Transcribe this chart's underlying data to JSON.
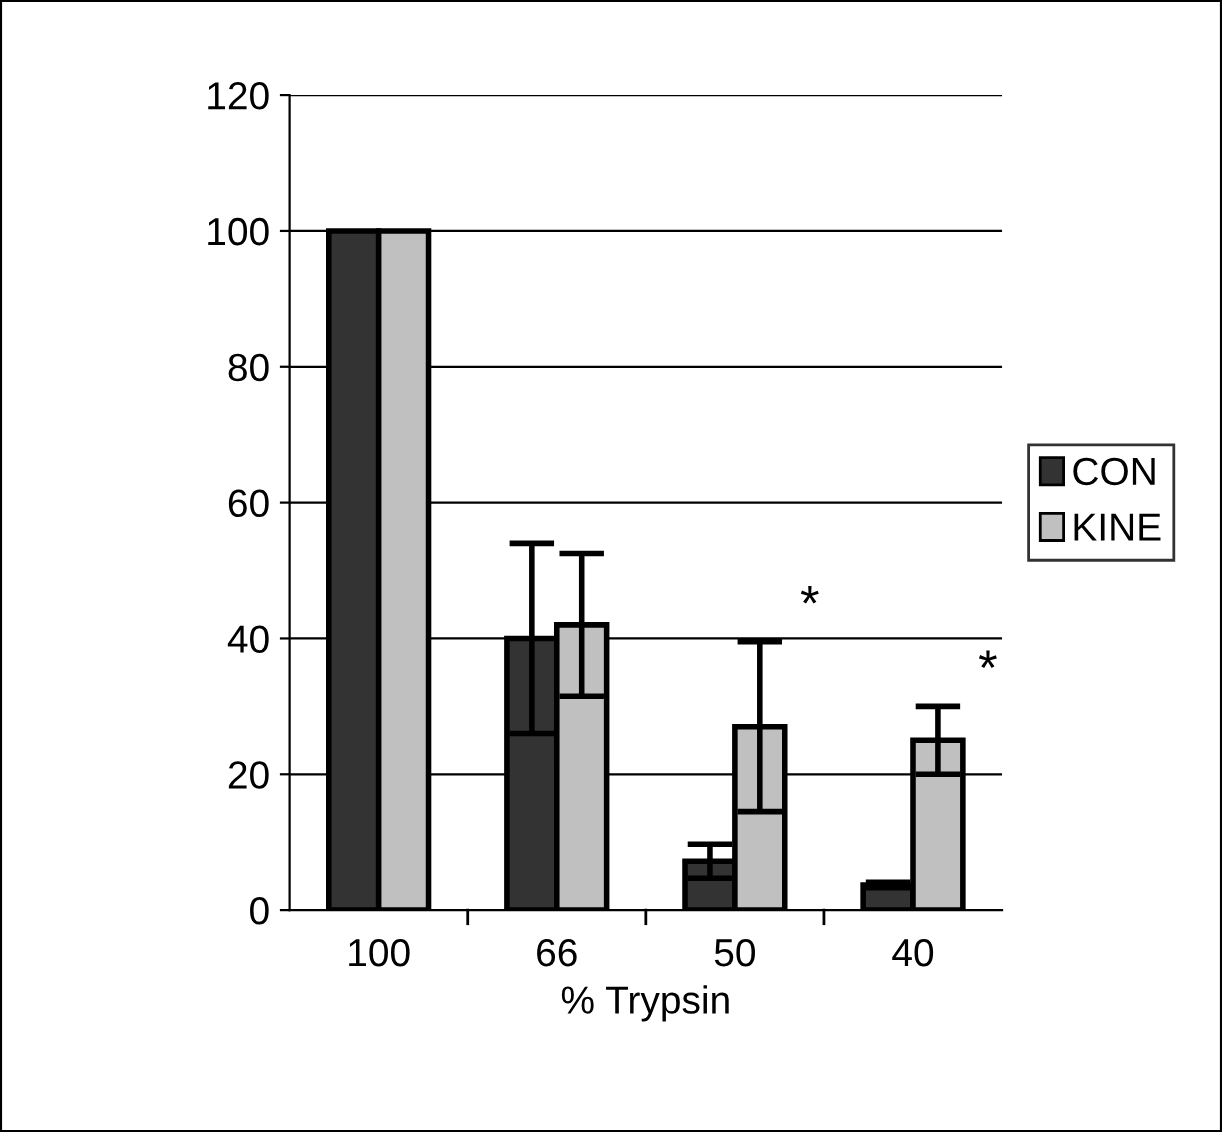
{
  "chart_data": {
    "type": "bar",
    "xlabel": "% Trypsin",
    "categories": [
      "100",
      "66",
      "50",
      "40"
    ],
    "series": [
      {
        "name": "CON",
        "color": "#333333",
        "values": [
          100,
          40,
          7.2,
          3.7
        ],
        "errors": [
          null,
          14,
          2.5,
          0.4
        ]
      },
      {
        "name": "KINE",
        "color": "#c0c0c0",
        "values": [
          100,
          42,
          27,
          25
        ],
        "errors": [
          null,
          10.5,
          12.5,
          5
        ]
      }
    ],
    "annotations": [
      {
        "text": "*",
        "x": "50",
        "y": 39.5
      },
      {
        "text": "*",
        "x": "40",
        "y": 30
      }
    ],
    "ylim": [
      0,
      120
    ],
    "yticks": [
      0,
      20,
      40,
      60,
      80,
      100,
      120
    ],
    "grid": "y",
    "legend": "right"
  }
}
